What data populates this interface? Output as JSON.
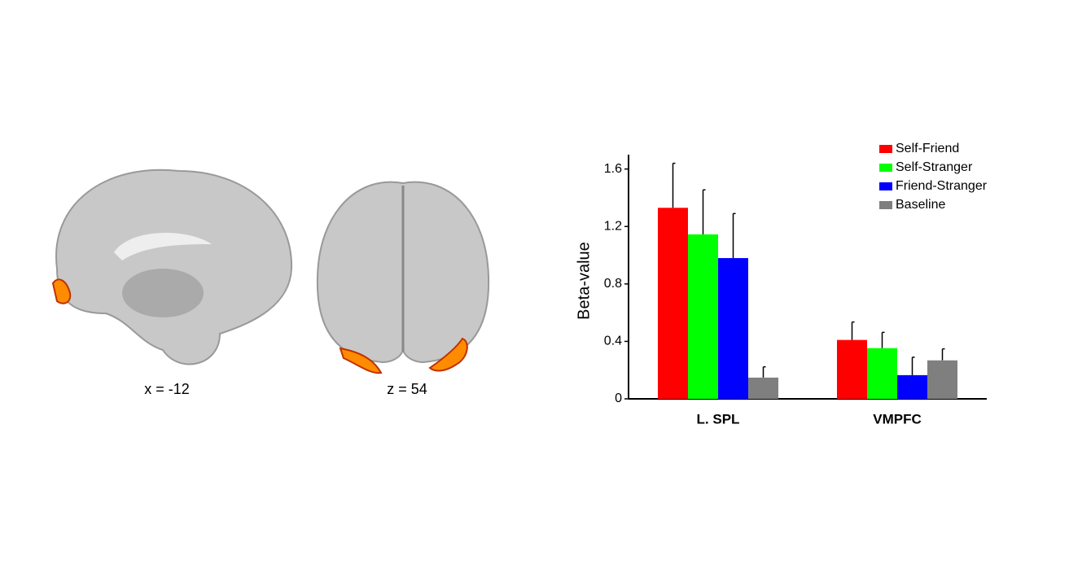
{
  "brain_labels": [
    "x = -12",
    "z = 54"
  ],
  "chart_data": {
    "type": "bar",
    "y_label": "Beta-value",
    "categories": [
      "L. SPL",
      "VMPFC"
    ],
    "series": [
      {
        "name": "Self-Friend",
        "color": "#ff0000",
        "values": [
          1.33,
          0.41
        ],
        "errors": [
          0.31,
          0.125
        ]
      },
      {
        "name": "Self-Stranger",
        "color": "#00ff00",
        "values": [
          1.145,
          0.353
        ],
        "errors": [
          0.31,
          0.11
        ]
      },
      {
        "name": "Friend-Stranger",
        "color": "#0000ff",
        "values": [
          0.98,
          0.165
        ],
        "errors": [
          0.31,
          0.125
        ]
      },
      {
        "name": "Baseline",
        "color": "#7f7f7f",
        "values": [
          0.148,
          0.268
        ],
        "errors": [
          0.075,
          0.08
        ]
      }
    ],
    "ylim": [
      0,
      1.7
    ],
    "yticks": [
      0,
      0.4,
      0.8,
      1.2,
      1.6
    ],
    "legend": "upper right"
  }
}
